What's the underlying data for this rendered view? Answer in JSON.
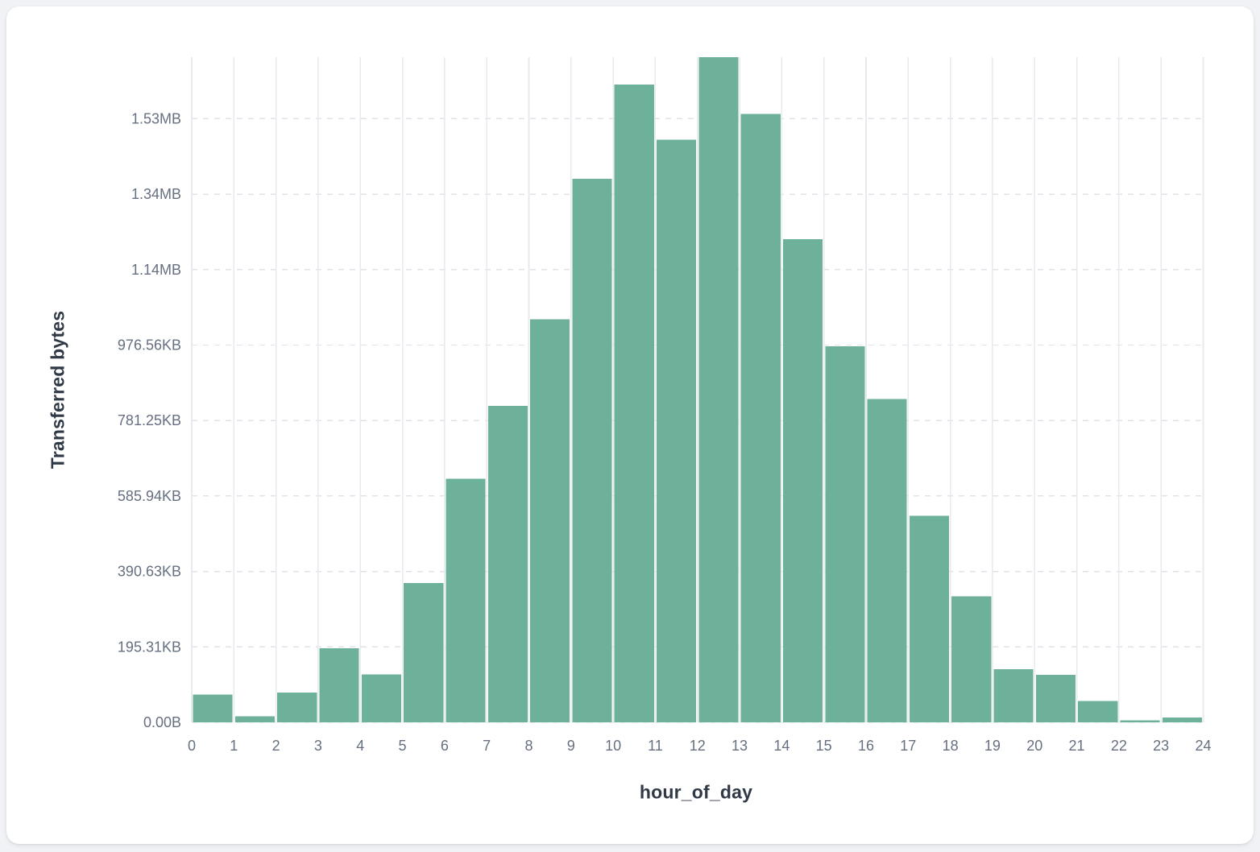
{
  "chart_data": {
    "type": "bar",
    "title": "",
    "xlabel": "hour_of_day",
    "ylabel": "Transferred bytes",
    "unit": "bytes",
    "xlim": [
      0,
      24
    ],
    "ylim": [
      0,
      1763000
    ],
    "grid": {
      "vertical_lines": "solid",
      "horizontal_lines": "dashed",
      "legend": "none"
    },
    "x_ticks": [
      "0",
      "1",
      "2",
      "3",
      "4",
      "5",
      "6",
      "7",
      "8",
      "9",
      "10",
      "11",
      "12",
      "13",
      "14",
      "15",
      "16",
      "17",
      "18",
      "19",
      "20",
      "21",
      "22",
      "23",
      "24"
    ],
    "y_ticks": [
      {
        "value": 0,
        "label": "0.00B"
      },
      {
        "value": 200000,
        "label": "195.31KB"
      },
      {
        "value": 400000,
        "label": "390.63KB"
      },
      {
        "value": 600000,
        "label": "585.94KB"
      },
      {
        "value": 800000,
        "label": "781.25KB"
      },
      {
        "value": 1000000,
        "label": "976.56KB"
      },
      {
        "value": 1200000,
        "label": "1.14MB"
      },
      {
        "value": 1400000,
        "label": "1.34MB"
      },
      {
        "value": 1600000,
        "label": "1.53MB"
      }
    ],
    "bin_starts": [
      0,
      1,
      2,
      3,
      4,
      5,
      6,
      7,
      8,
      9,
      10,
      11,
      12,
      13,
      14,
      15,
      16,
      17,
      18,
      19,
      20,
      21,
      22,
      23
    ],
    "series": [
      {
        "name": "Transferred bytes",
        "color": "#6EB19A",
        "values": [
          74000,
          16500,
          78500,
          196000,
          126500,
          369000,
          646000,
          839000,
          1068000,
          1441000,
          1690000,
          1544000,
          1763000,
          1613000,
          1281000,
          997000,
          857000,
          547000,
          334000,
          141000,
          125500,
          57000,
          5000,
          13000
        ]
      }
    ]
  },
  "colors": {
    "page_background": "#f0f2f5",
    "card_background": "#ffffff",
    "bar": "#6EB19A",
    "grid_vertical": "#e7eaef",
    "grid_horizontal": "#dfe3e9",
    "tick_label": "#667081",
    "axis_title": "#303946"
  }
}
